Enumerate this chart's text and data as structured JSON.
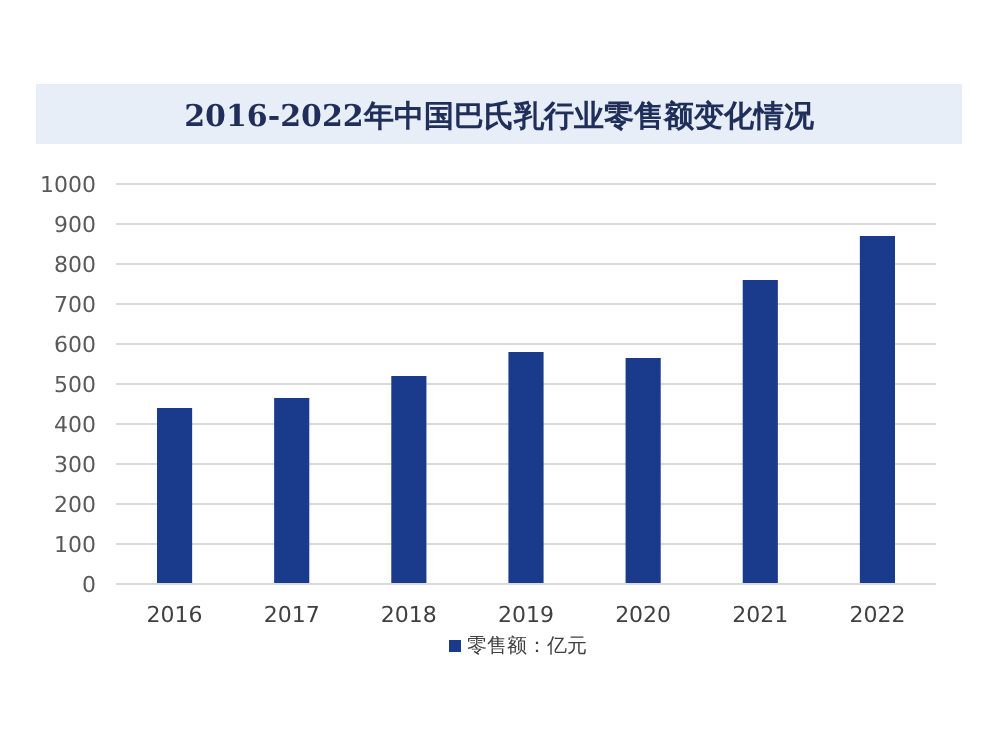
{
  "chart_data": {
    "type": "bar",
    "title": "2016-2022年中国巴氏乳行业零售额变化情况",
    "categories": [
      "2016",
      "2017",
      "2018",
      "2019",
      "2020",
      "2021",
      "2022"
    ],
    "series": [
      {
        "name": "零售额：亿元",
        "color": "#1a3a8c",
        "values": [
          440,
          465,
          520,
          580,
          565,
          760,
          870
        ]
      }
    ],
    "ylim": [
      0,
      1000
    ],
    "yticks": [
      0,
      100,
      200,
      300,
      400,
      500,
      600,
      700,
      800,
      900,
      1000
    ],
    "grid": "y",
    "legend": "bottom"
  }
}
